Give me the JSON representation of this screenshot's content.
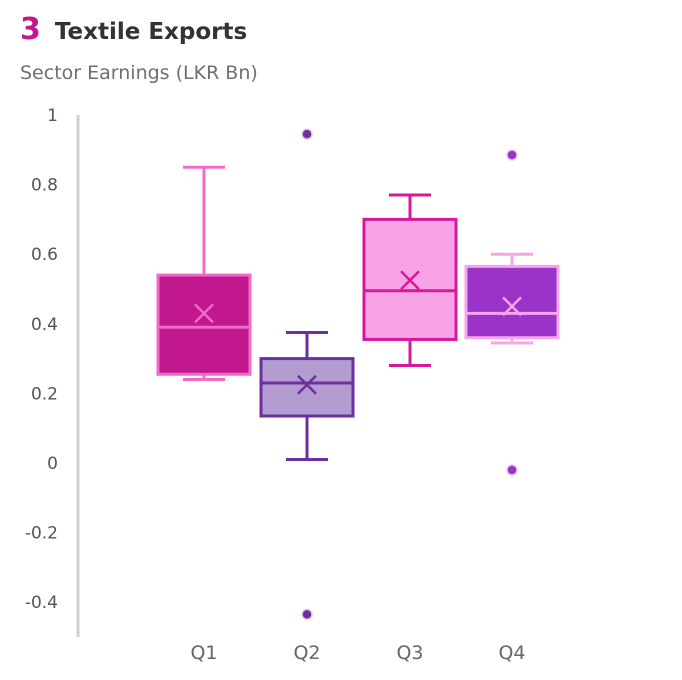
{
  "header": {
    "number": "3",
    "title": "Textile Exports"
  },
  "chart_data": {
    "type": "box",
    "subtitle": "Sector Earnings (LKR Bn)",
    "ylim": [
      -0.5,
      1
    ],
    "yticks": [
      "1",
      "0.8",
      "0.6",
      "0.4",
      "0.2",
      "0",
      "-0.2",
      "-0.4"
    ],
    "ytick_values": [
      1,
      0.8,
      0.6,
      0.4,
      0.2,
      0,
      -0.2,
      -0.4
    ],
    "grid": false,
    "categories": [
      "Q1",
      "Q2",
      "Q3",
      "Q4"
    ],
    "boxes": [
      {
        "category": "Q1",
        "min": 0.24,
        "q1": 0.255,
        "median": 0.39,
        "q3": 0.54,
        "max": 0.85,
        "mean": 0.43,
        "outliers": [],
        "fill": "#c2188e",
        "stroke": "#f06bc9",
        "outlier_color": "#c2188e"
      },
      {
        "category": "Q2",
        "min": 0.01,
        "q1": 0.135,
        "median": 0.23,
        "q3": 0.3,
        "max": 0.375,
        "mean": 0.225,
        "outliers": [
          0.945,
          -0.435
        ],
        "fill": "#b39dd0",
        "stroke": "#6e2f9e",
        "outlier_color": "#6e2f9e"
      },
      {
        "category": "Q3",
        "min": 0.28,
        "q1": 0.355,
        "median": 0.495,
        "q3": 0.7,
        "max": 0.77,
        "mean": 0.525,
        "outliers": [],
        "fill": "#f7a3e6",
        "stroke": "#d6199b",
        "outlier_color": "#d6199b"
      },
      {
        "category": "Q4",
        "min": 0.345,
        "q1": 0.36,
        "median": 0.43,
        "q3": 0.565,
        "max": 0.6,
        "mean": 0.45,
        "outliers": [
          0.885,
          -0.02
        ],
        "fill": "#9b33c8",
        "stroke": "#f5a5ec",
        "outlier_color": "#9b33c8"
      }
    ]
  }
}
